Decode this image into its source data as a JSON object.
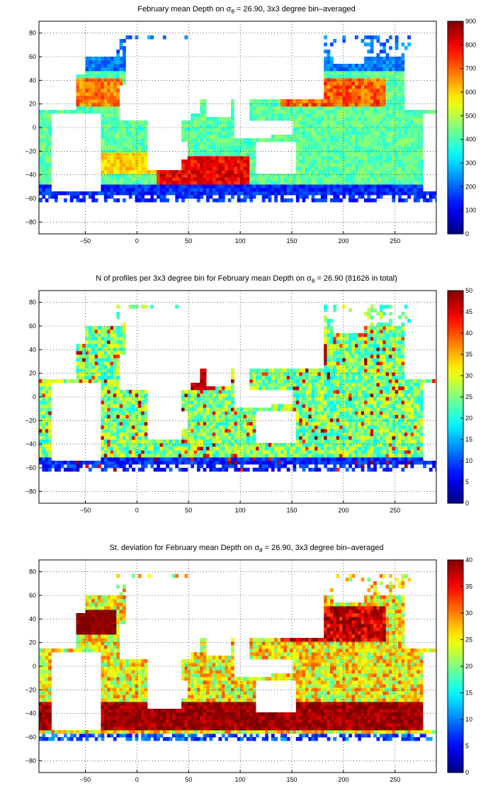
{
  "panels": [
    {
      "title_prefix": "February mean Depth on ",
      "title_sigma": "σ",
      "title_sub": "θ",
      "title_suffix": " = 26.90, 3x3 degree bin–averaged",
      "colorbar_ticks": [
        "900",
        "800",
        "700",
        "600",
        "500",
        "400",
        "300",
        "200",
        "100",
        "0"
      ]
    },
    {
      "title_prefix": "N of profiles per 3x3 degree bin for February mean Depth on ",
      "title_sigma": "σ",
      "title_sub": "θ",
      "title_suffix": " = 26.90 (81626 in total)",
      "colorbar_ticks": [
        "50",
        "45",
        "40",
        "35",
        "30",
        "25",
        "20",
        "15",
        "10",
        "5",
        "0"
      ]
    },
    {
      "title_prefix": "St. deviation for February mean Depth on ",
      "title_sigma": "σ",
      "title_sub": "θ",
      "title_suffix": " = 26.90, 3x3 degree bin–averaged",
      "colorbar_ticks": [
        "40",
        "35",
        "30",
        "25",
        "20",
        "15",
        "10",
        "5",
        "0"
      ]
    }
  ],
  "chart_data": [
    {
      "type": "heatmap",
      "title": "February mean Depth on σθ = 26.90, 3x3 degree bin-averaged",
      "xlabel": "",
      "ylabel": "",
      "x_ticks": [
        -50,
        0,
        50,
        100,
        150,
        200,
        250
      ],
      "y_ticks": [
        80,
        60,
        40,
        20,
        0,
        -20,
        -40,
        -60,
        -80
      ],
      "xlim": [
        -95,
        290
      ],
      "ylim": [
        -90,
        90
      ],
      "colorbar": {
        "min": 0,
        "max": 900,
        "ticks": [
          0,
          100,
          200,
          300,
          400,
          500,
          600,
          700,
          800,
          900
        ]
      },
      "bin_size_deg": 3,
      "colormap": "jet",
      "grid": "dotted"
    },
    {
      "type": "heatmap",
      "title": "N of profiles per 3x3 degree bin for February mean Depth on σθ = 26.90 (81626 in total)",
      "xlabel": "",
      "ylabel": "",
      "x_ticks": [
        -50,
        0,
        50,
        100,
        150,
        200,
        250
      ],
      "y_ticks": [
        80,
        60,
        40,
        20,
        0,
        -20,
        -40,
        -60,
        -80
      ],
      "xlim": [
        -95,
        290
      ],
      "ylim": [
        -90,
        90
      ],
      "colorbar": {
        "min": 0,
        "max": 50,
        "ticks": [
          0,
          5,
          10,
          15,
          20,
          25,
          30,
          35,
          40,
          45,
          50
        ]
      },
      "total_profiles": 81626,
      "bin_size_deg": 3,
      "colormap": "jet",
      "grid": "dotted"
    },
    {
      "type": "heatmap",
      "title": "St. deviation for February mean Depth on σθ = 26.90, 3x3 degree bin-averaged",
      "xlabel": "",
      "ylabel": "",
      "x_ticks": [
        -50,
        0,
        50,
        100,
        150,
        200,
        250
      ],
      "y_ticks": [
        80,
        60,
        40,
        20,
        0,
        -20,
        -40,
        -60,
        -80
      ],
      "xlim": [
        -95,
        290
      ],
      "ylim": [
        -90,
        90
      ],
      "colorbar": {
        "min": 0,
        "max": 40,
        "ticks": [
          0,
          5,
          10,
          15,
          20,
          25,
          30,
          35,
          40
        ]
      },
      "bin_size_deg": 3,
      "colormap": "jet",
      "grid": "dotted"
    }
  ]
}
